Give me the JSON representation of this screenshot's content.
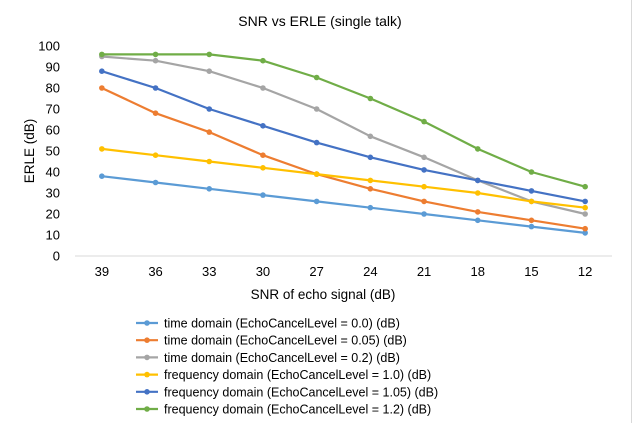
{
  "chart_data": {
    "type": "line",
    "title": "SNR vs ERLE (single talk)",
    "xlabel": "SNR of echo signal (dB)",
    "ylabel": "ERLE (dB)",
    "categories": [
      "39",
      "36",
      "33",
      "30",
      "27",
      "24",
      "21",
      "18",
      "15",
      "12"
    ],
    "ylim": [
      0,
      100
    ],
    "yticks": [
      0,
      10,
      20,
      30,
      40,
      50,
      60,
      70,
      80,
      90,
      100
    ],
    "grid": false,
    "legend_position": "bottom",
    "series": [
      {
        "name": "time domain (EchoCancelLevel = 0.0) (dB)",
        "color": "#5b9bd5",
        "values": [
          38,
          35,
          32,
          29,
          26,
          23,
          20,
          17,
          14,
          11
        ]
      },
      {
        "name": "time domain (EchoCancelLevel = 0.05) (dB)",
        "color": "#ed7d31",
        "values": [
          80,
          68,
          59,
          48,
          39,
          32,
          26,
          21,
          17,
          13
        ]
      },
      {
        "name": "time domain (EchoCancelLevel = 0.2) (dB)",
        "color": "#a5a5a5",
        "values": [
          95,
          93,
          88,
          80,
          70,
          57,
          47,
          36,
          26,
          20
        ]
      },
      {
        "name": "frequency domain (EchoCancelLevel = 1.0) (dB)",
        "color": "#ffc000",
        "values": [
          51,
          48,
          45,
          42,
          39,
          36,
          33,
          30,
          26,
          23
        ]
      },
      {
        "name": "frequency domain (EchoCancelLevel = 1.05) (dB)",
        "color": "#4472c4",
        "values": [
          88,
          80,
          70,
          62,
          54,
          47,
          41,
          36,
          31,
          26
        ]
      },
      {
        "name": "frequency domain (EchoCancelLevel = 1.2) (dB)",
        "color": "#70ad47",
        "values": [
          96,
          96,
          96,
          93,
          85,
          75,
          64,
          51,
          40,
          33
        ]
      }
    ]
  }
}
